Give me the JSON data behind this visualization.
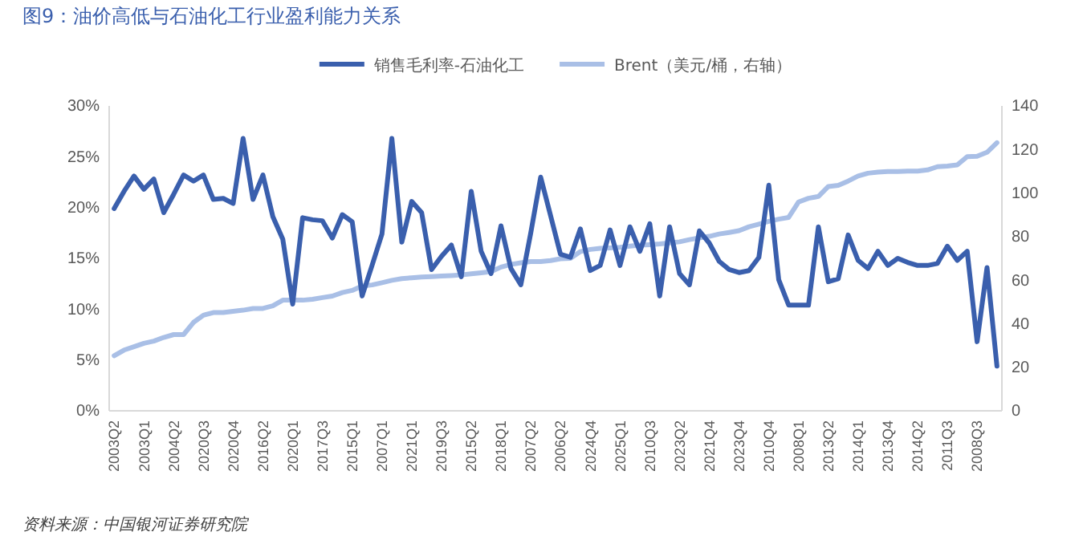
{
  "chart_data": {
    "type": "line",
    "title": "图9：油价高低与石油化工行业盈利能力关系",
    "categories": [
      "2003Q2",
      null,
      null,
      "2003Q1",
      null,
      null,
      "2004Q2",
      null,
      null,
      "2020Q3",
      null,
      null,
      "2020Q4",
      null,
      null,
      "2016Q2",
      null,
      null,
      "2020Q1",
      null,
      null,
      "2017Q3",
      null,
      null,
      "2015Q1",
      null,
      null,
      "2007Q1",
      null,
      null,
      "2021Q1",
      null,
      null,
      "2019Q3",
      null,
      null,
      "2015Q2",
      null,
      null,
      "2018Q1",
      null,
      null,
      "2007Q2",
      null,
      null,
      "2006Q2",
      null,
      null,
      "2024Q4",
      null,
      null,
      "2025Q1",
      null,
      null,
      "2010Q3",
      null,
      null,
      "2023Q2",
      null,
      null,
      "2021Q4",
      null,
      null,
      "2023Q4",
      null,
      null,
      "2010Q4",
      null,
      null,
      "2008Q1",
      null,
      null,
      "2013Q2",
      null,
      null,
      "2014Q1",
      null,
      null,
      "2013Q4",
      null,
      null,
      "2014Q2",
      null,
      null,
      "2011Q3",
      null,
      null,
      "2008Q3",
      null,
      null
    ],
    "series": [
      {
        "name": "销售毛利率-石油化工",
        "color": "#3a5fad",
        "values": [
          19.9,
          21.6,
          23.1,
          21.8,
          22.8,
          19.5,
          21.3,
          23.2,
          22.6,
          23.2,
          20.8,
          20.9,
          20.4,
          26.8,
          20.8,
          23.2,
          19.1,
          16.9,
          10.5,
          19.0,
          18.8,
          18.7,
          17.0,
          19.3,
          18.6,
          11.3,
          14.3,
          17.4,
          26.8,
          16.6,
          20.6,
          19.5,
          13.9,
          15.2,
          16.3,
          13.2,
          21.6,
          15.7,
          13.5,
          18.2,
          14.0,
          12.4,
          17.5,
          23.0,
          19.2,
          15.4,
          15.1,
          17.9,
          13.8,
          14.3,
          17.8,
          14.3,
          18.1,
          15.7,
          18.4,
          11.3,
          18.1,
          13.5,
          12.4,
          17.7,
          16.5,
          14.7,
          13.9,
          13.6,
          13.8,
          15.1,
          22.2,
          12.9,
          10.4,
          10.4,
          10.4,
          18.1,
          12.7,
          13.0,
          17.3,
          14.8,
          14.0,
          15.7,
          14.3,
          15.0,
          14.6,
          14.3,
          14.3,
          14.5,
          16.2,
          14.8,
          15.7,
          6.8,
          14.1,
          4.4
        ]
      },
      {
        "name": "Brent（美元/桶，右轴）",
        "color": "#a9bfe6",
        "axis": "y2",
        "values": [
          25.3,
          27.9,
          29.4,
          31.0,
          32.0,
          33.7,
          35.0,
          35.0,
          40.6,
          43.9,
          45.1,
          45.1,
          45.7,
          46.2,
          47.0,
          47.0,
          48.2,
          50.8,
          50.8,
          50.8,
          51.2,
          52.0,
          52.7,
          54.3,
          55.3,
          57.3,
          57.8,
          58.8,
          59.9,
          60.7,
          61.1,
          61.4,
          61.6,
          61.9,
          62.1,
          62.4,
          62.9,
          63.4,
          63.9,
          66.0,
          67.2,
          68.0,
          68.5,
          68.5,
          69.0,
          69.8,
          70.0,
          73.1,
          74.1,
          74.6,
          74.8,
          75.1,
          75.6,
          76.1,
          76.3,
          76.6,
          77.1,
          77.6,
          78.6,
          79.4,
          80.1,
          81.2,
          81.9,
          82.7,
          84.5,
          85.7,
          87.0,
          88.0,
          88.8,
          95.9,
          97.6,
          98.4,
          103.0,
          103.5,
          105.5,
          107.8,
          109.1,
          109.6,
          109.9,
          109.9,
          110.1,
          110.1,
          110.6,
          112.1,
          112.4,
          112.9,
          116.7,
          116.9,
          118.7,
          123.1
        ]
      }
    ],
    "ylim": [
      0,
      30
    ],
    "yticks": [
      {
        "value": 0,
        "label": "0%"
      },
      {
        "value": 5,
        "label": "5%"
      },
      {
        "value": 10,
        "label": "10%"
      },
      {
        "value": 15,
        "label": "15%"
      },
      {
        "value": 20,
        "label": "20%"
      },
      {
        "value": 25,
        "label": "25%"
      },
      {
        "value": 30,
        "label": "30%"
      }
    ],
    "y2lim": [
      0,
      140
    ],
    "y2ticks": [
      0,
      20,
      40,
      60,
      80,
      100,
      120,
      140
    ],
    "legend": "top",
    "grid": false,
    "marker": "none",
    "line_style": "solid",
    "annotations": [
      "资料来源：中国银河证券研究院"
    ]
  }
}
